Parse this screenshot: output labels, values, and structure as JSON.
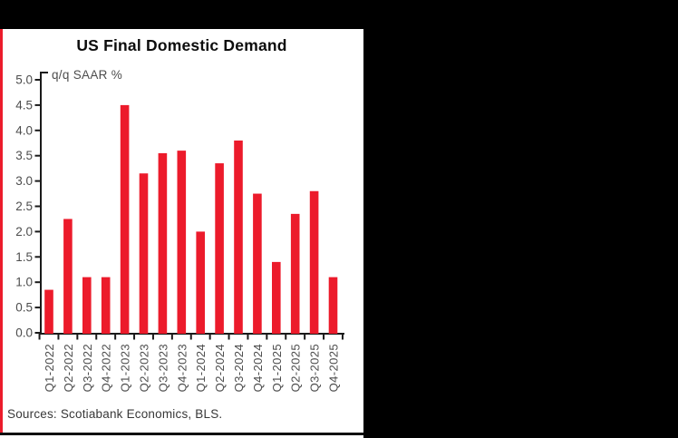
{
  "chart_data": {
    "type": "bar",
    "title": "US Final Domestic Demand",
    "annotation": "q/q SAAR %",
    "source": "Sources: Scotiabank Economics, BLS.",
    "categories": [
      "Q1-2022",
      "Q2-2022",
      "Q3-2022",
      "Q4-2022",
      "Q1-2023",
      "Q2-2023",
      "Q3-2023",
      "Q4-2023",
      "Q1-2024",
      "Q2-2024",
      "Q3-2024",
      "Q4-2024",
      "Q1-2025",
      "Q2-2025",
      "Q3-2025",
      "Q4-2025"
    ],
    "values": [
      0.85,
      2.25,
      1.1,
      1.1,
      4.5,
      3.15,
      3.55,
      3.6,
      2.0,
      3.35,
      3.8,
      2.75,
      1.4,
      2.35,
      2.8,
      1.1
    ],
    "ylim": [
      0.0,
      5.0
    ],
    "ytick_step": 0.5,
    "grid": false,
    "legend": "none",
    "bar_color": "#EC1B2B",
    "accent_color": "#EC1B2B",
    "axis_color": "#1a1a1a",
    "tick_label_color": "#4d4d4d",
    "background_color": "#000000",
    "panel_color": "#ffffff"
  }
}
